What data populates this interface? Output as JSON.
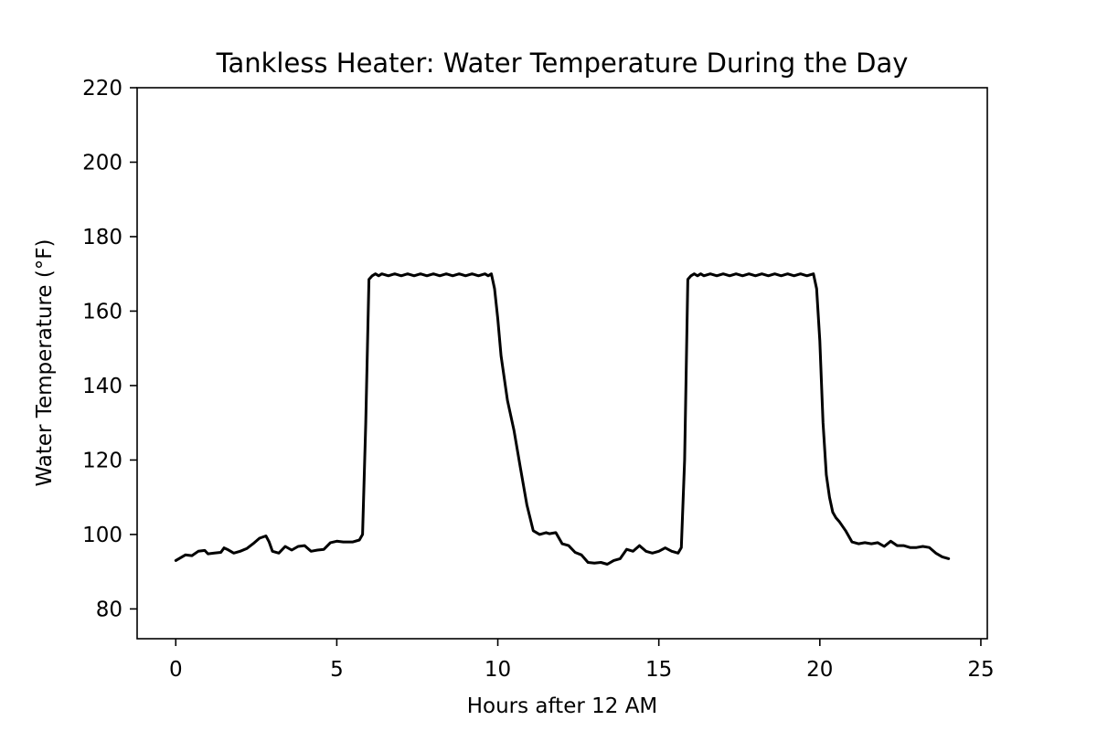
{
  "chart_data": {
    "type": "line",
    "title": "Tankless Heater: Water Temperature During the Day",
    "xlabel": "Hours after 12 AM",
    "ylabel": "Water Temperature (°F)",
    "xlim": [
      -1.2,
      25.2
    ],
    "ylim": [
      72,
      220
    ],
    "xticks": [
      0,
      5,
      10,
      15,
      20,
      25
    ],
    "yticks": [
      80,
      100,
      120,
      140,
      160,
      180,
      200,
      220
    ],
    "grid": false,
    "line_color": "#000000",
    "series": [
      {
        "x": [
          0,
          0.3,
          0.5,
          0.7,
          0.9,
          1.0,
          1.2,
          1.4,
          1.5,
          1.6,
          1.8,
          2.0,
          2.2,
          2.4,
          2.6,
          2.8,
          2.9,
          3.0,
          3.2,
          3.4,
          3.6,
          3.8,
          4.0,
          4.2,
          4.4,
          4.6,
          4.8,
          5.0,
          5.2,
          5.5,
          5.7,
          5.8,
          5.9,
          6.0,
          6.1,
          6.2,
          6.3,
          6.4,
          6.6,
          6.8,
          7.0,
          7.2,
          7.4,
          7.6,
          7.8,
          8.0,
          8.2,
          8.4,
          8.6,
          8.8,
          9.0,
          9.2,
          9.4,
          9.6,
          9.7,
          9.8,
          9.9,
          10.0,
          10.1,
          10.3,
          10.5,
          10.7,
          10.9,
          11.1,
          11.3,
          11.5,
          11.6,
          11.8,
          12.0,
          12.2,
          12.4,
          12.6,
          12.8,
          13.0,
          13.2,
          13.4,
          13.6,
          13.8,
          14.0,
          14.2,
          14.4,
          14.6,
          14.8,
          15.0,
          15.2,
          15.4,
          15.6,
          15.7,
          15.8,
          15.9,
          16.0,
          16.1,
          16.2,
          16.3,
          16.4,
          16.6,
          16.8,
          17.0,
          17.2,
          17.4,
          17.6,
          17.8,
          18.0,
          18.2,
          18.4,
          18.6,
          18.8,
          19.0,
          19.2,
          19.4,
          19.6,
          19.8,
          19.9,
          20.0,
          20.1,
          20.2,
          20.3,
          20.4,
          20.5,
          20.6,
          20.8,
          21.0,
          21.2,
          21.4,
          21.6,
          21.8,
          22.0,
          22.2,
          22.4,
          22.6,
          22.8,
          23.0,
          23.2,
          23.4,
          23.6,
          23.8,
          24.0
        ],
        "y": [
          93,
          94.5,
          94.3,
          95.5,
          95.7,
          94.8,
          95,
          95.2,
          96.4,
          96,
          95,
          95.5,
          96.2,
          97.5,
          99,
          99.6,
          98,
          95.5,
          95,
          96.8,
          95.8,
          96.8,
          97,
          95.5,
          95.8,
          96,
          97.8,
          98.2,
          98,
          98,
          98.5,
          100,
          130,
          168.5,
          169.5,
          170,
          169.5,
          170,
          169.5,
          170,
          169.5,
          170,
          169.5,
          170,
          169.5,
          170,
          169.5,
          170,
          169.5,
          170,
          169.5,
          170,
          169.5,
          170,
          169.5,
          170,
          166,
          158,
          148,
          136,
          128,
          118,
          108,
          101,
          100,
          100.5,
          100.2,
          100.5,
          97.5,
          97,
          95.2,
          94.5,
          92.5,
          92.3,
          92.5,
          92,
          93,
          93.5,
          96,
          95.5,
          97,
          95.5,
          95,
          95.5,
          96.4,
          95.5,
          95,
          96.5,
          120,
          168.5,
          169.5,
          170,
          169.5,
          170,
          169.5,
          170,
          169.5,
          170,
          169.5,
          170,
          169.5,
          170,
          169.5,
          170,
          169.5,
          170,
          169.5,
          170,
          169.5,
          170,
          169.5,
          170,
          166,
          152,
          130,
          116,
          110,
          106,
          104.5,
          103.5,
          101,
          98,
          97.5,
          97.8,
          97.5,
          97.8,
          96.8,
          98.2,
          97,
          97,
          96.5,
          96.5,
          96.8,
          96.5,
          95,
          94,
          93.5
        ]
      }
    ]
  }
}
